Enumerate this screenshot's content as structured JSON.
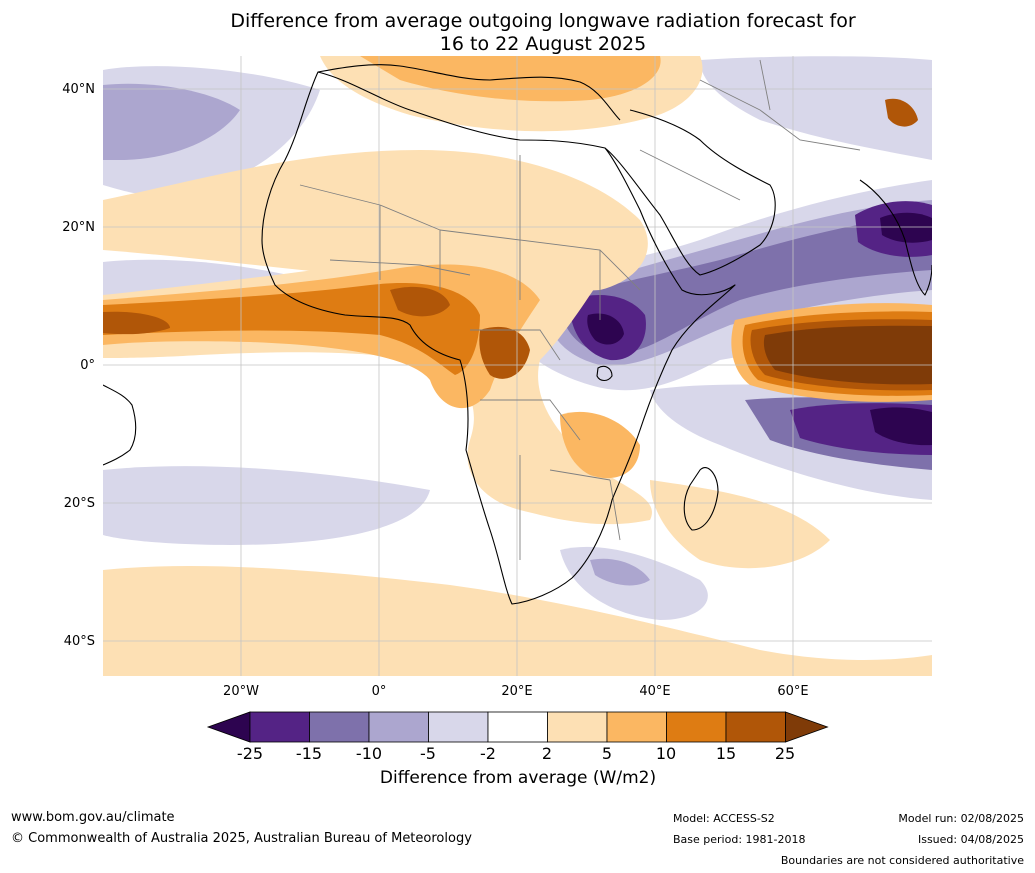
{
  "title_line1": "Difference from average outgoing longwave radiation forecast for",
  "title_line2": "16 to 22 August 2025",
  "latitude_labels": [
    "40°N",
    "20°N",
    "0°",
    "20°S",
    "40°S"
  ],
  "longitude_labels": [
    "20°W",
    "0°",
    "20°E",
    "40°E",
    "60°E"
  ],
  "colorbar": {
    "ticks": [
      "-25",
      "-15",
      "-10",
      "-5",
      "-2",
      "2",
      "5",
      "10",
      "15",
      "25"
    ],
    "label": "Difference from average (W/m2)",
    "colors": [
      "#2d0450",
      "#542385",
      "#7e71ab",
      "#aca6cf",
      "#d8d7ea",
      "#ffffff",
      "#fde0b4",
      "#fbb762",
      "#de7c13",
      "#b05608",
      "#7f3b08"
    ]
  },
  "footer": {
    "website": "www.bom.gov.au/climate",
    "copyright": "© Commonwealth of Australia 2025, Australian Bureau of Meteorology",
    "model": "Model: ACCESS-S2",
    "base_period": "Base period: 1981-2018",
    "model_run": "Model run: 02/08/2025",
    "issued": "Issued: 04/08/2025",
    "disclaimer": "Boundaries are not considered authoritative"
  }
}
